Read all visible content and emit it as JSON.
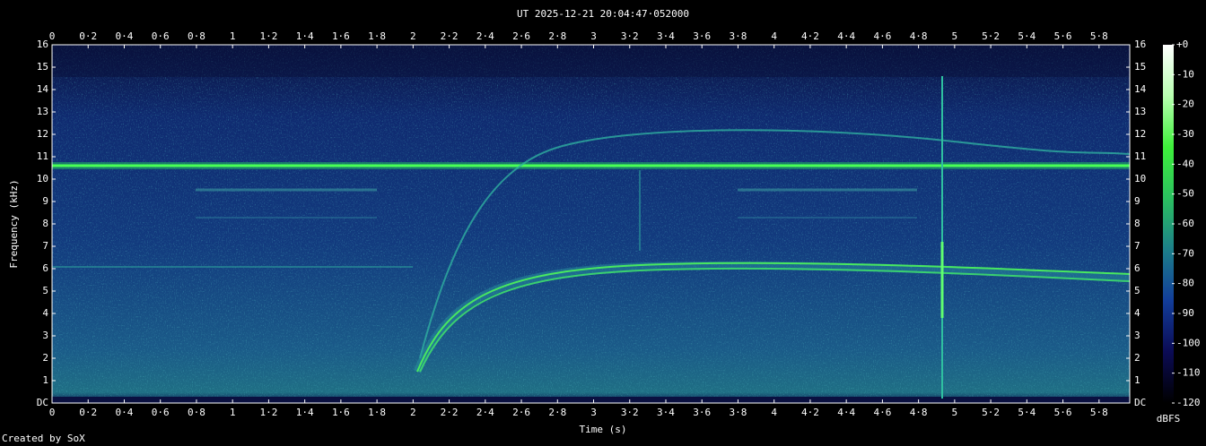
{
  "chart_data": {
    "type": "spectrogram",
    "title": "UT 2025-12-21 20:04:47·052000",
    "x_label": "Time (s)",
    "y_label": "Frequency (kHz)",
    "colorbar_label": "dBFS",
    "footer": "Created by SoX",
    "xlim": [
      0,
      5.97
    ],
    "xticks": [
      0,
      {
        "value": 0.2,
        "label": "0·2"
      },
      {
        "value": 0.4,
        "label": "0·4"
      },
      {
        "value": 0.6,
        "label": "0·6"
      },
      {
        "value": 0.8,
        "label": "0·8"
      },
      1,
      {
        "value": 1.2,
        "label": "1·2"
      },
      {
        "value": 1.4,
        "label": "1·4"
      },
      {
        "value": 1.6,
        "label": "1·6"
      },
      {
        "value": 1.8,
        "label": "1·8"
      },
      2,
      {
        "value": 2.2,
        "label": "2·2"
      },
      {
        "value": 2.4,
        "label": "2·4"
      },
      {
        "value": 2.6,
        "label": "2·6"
      },
      {
        "value": 2.8,
        "label": "2·8"
      },
      3,
      {
        "value": 3.2,
        "label": "3·2"
      },
      {
        "value": 3.4,
        "label": "3·4"
      },
      {
        "value": 3.6,
        "label": "3·6"
      },
      {
        "value": 3.8,
        "label": "3·8"
      },
      4,
      {
        "value": 4.2,
        "label": "4·2"
      },
      {
        "value": 4.4,
        "label": "4·4"
      },
      {
        "value": 4.6,
        "label": "4·6"
      },
      {
        "value": 4.8,
        "label": "4·8"
      },
      5,
      {
        "value": 5.2,
        "label": "5·2"
      },
      {
        "value": 5.4,
        "label": "5·4"
      },
      {
        "value": 5.6,
        "label": "5·6"
      },
      {
        "value": 5.8,
        "label": "5·8"
      }
    ],
    "ylim": [
      0,
      16
    ],
    "yticks": [
      {
        "value": 0,
        "label": "DC"
      },
      1,
      2,
      3,
      4,
      5,
      6,
      7,
      8,
      9,
      10,
      11,
      12,
      13,
      14,
      15,
      16
    ],
    "zlim": [
      -120,
      0
    ],
    "zticks": [
      {
        "value": 0,
        "label": "+0"
      },
      -10,
      -20,
      -30,
      -40,
      -50,
      -60,
      -70,
      -80,
      -90,
      -100,
      -110,
      -120
    ],
    "colormap": [
      "#000000",
      "#0b0b55",
      "#123d9a",
      "#1c7f8a",
      "#2bc060",
      "#3ef03a",
      "#b8ffb0",
      "#ffffff"
    ]
  }
}
